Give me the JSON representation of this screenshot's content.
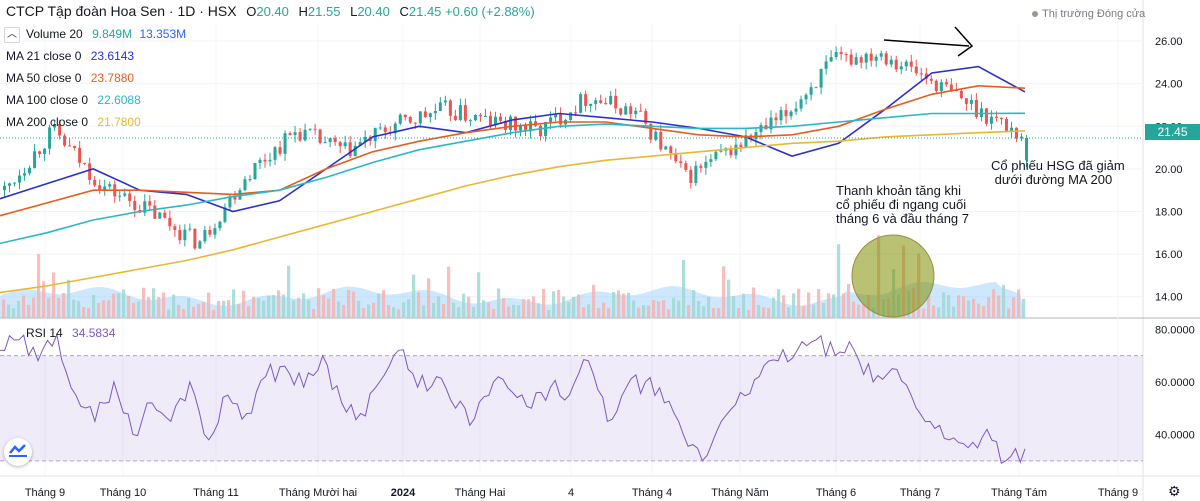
{
  "header": {
    "title": "CTCP Tập đoàn Hoa Sen · 1D · HSX",
    "open_label": "O",
    "open": "20.40",
    "high_label": "H",
    "high": "21.55",
    "low_label": "L",
    "low": "20.40",
    "close_label": "C",
    "close": "21.45",
    "change": "+0.60 (+2.88%)",
    "market_status": "Thị trường Đóng cửa",
    "collapse_icon": "chevron-up-icon"
  },
  "indicators": [
    {
      "name": "Volume 20",
      "v1": "9.849M",
      "v2": "13.353M",
      "color1": "#26a69a",
      "color2": "#2962ff"
    },
    {
      "name": "MA 21 close 0",
      "value": "23.6143",
      "color": "#2a2fcf"
    },
    {
      "name": "MA 50 close 0",
      "value": "23.7880",
      "color": "#e65d1e"
    },
    {
      "name": "MA 100 close 0",
      "value": "22.6088",
      "color": "#2ab8c4"
    },
    {
      "name": "MA 200 close 0",
      "value": "21.7800",
      "color": "#e8b830"
    }
  ],
  "rsi": {
    "name": "RSI 14",
    "value": "34.5834",
    "color": "#7e57c2"
  },
  "price_tag": "21.45",
  "annotations": {
    "volume_note": "Thanh khoản tăng khi\ncổ phiếu đi ngang cuối\ntháng 6 và đầu tháng 7",
    "ma200_note": "Cổ phiếu HSG đã giảm\n dưới đường MA 200"
  },
  "colors": {
    "up": "#26a69a",
    "down": "#ef5350",
    "ma21": "#2a2fcf",
    "ma50": "#e65d1e",
    "ma100": "#2ab8c4",
    "ma200": "#e8b830",
    "rsi": "#7e57c2"
  },
  "chart_data": [
    {
      "type": "candlestick",
      "title": "CTCP Tập đoàn Hoa Sen · 1D · HSX",
      "ylim": [
        13,
        26.8
      ],
      "y_ticks": [
        "26.00",
        "24.00",
        "22.00",
        "20.00",
        "18.00",
        "16.00",
        "14.00"
      ],
      "x_ticks": [
        "Tháng 9",
        "Tháng 10",
        "Tháng 11",
        "Tháng Mười hai",
        "2024",
        "Tháng Hai",
        "4",
        "Tháng 4",
        "Tháng Năm",
        "Tháng 6",
        "Tháng 7",
        "Tháng Tám",
        "Tháng 9"
      ],
      "last_ohlc": {
        "open": 20.4,
        "high": 21.55,
        "low": 20.4,
        "close": 21.45
      },
      "close_path": [
        [
          "Tháng 9",
          19.0
        ],
        [
          "Tháng 9",
          21.8
        ],
        [
          "Tháng 10",
          19.2
        ],
        [
          "Tháng 10",
          18.0
        ],
        [
          "Tháng 11",
          16.5
        ],
        [
          "Tháng 11",
          19.8
        ],
        [
          "Tháng Mười hai",
          21.8
        ],
        [
          "Tháng Mười hai",
          20.8
        ],
        [
          "2024",
          22.0
        ],
        [
          "Tháng Hai",
          22.8
        ],
        [
          "Tháng Hai",
          22.2
        ],
        [
          "4",
          21.8
        ],
        [
          "Tháng 4",
          23.4
        ],
        [
          "Tháng 4",
          22.6
        ],
        [
          "Tháng Năm",
          19.6
        ],
        [
          "Tháng Năm",
          21.0
        ],
        [
          "Tháng 6",
          22.4
        ],
        [
          "Tháng 6",
          25.0
        ],
        [
          "Tháng 7",
          25.5
        ],
        [
          "Tháng 7",
          24.2
        ],
        [
          "Tháng Tám",
          22.8
        ],
        [
          "Tháng Tám",
          21.45
        ]
      ],
      "series": [
        {
          "name": "MA 21 close 0",
          "last": 23.6143,
          "path": [
            18.6,
            19.3,
            20.0,
            19.0,
            18.8,
            18.0,
            18.5,
            20.0,
            21.5,
            22.0,
            21.7,
            22.3,
            22.6,
            22.4,
            22.2,
            21.9,
            21.5,
            20.6,
            21.2,
            22.8,
            24.5,
            24.8,
            23.6143
          ]
        },
        {
          "name": "MA 50 close 0",
          "last": 23.788,
          "path": [
            17.8,
            18.4,
            19.0,
            19.0,
            18.9,
            18.8,
            19.0,
            20.0,
            20.8,
            21.3,
            21.7,
            22.0,
            22.2,
            22.2,
            21.9,
            21.6,
            21.5,
            21.6,
            22.0,
            22.8,
            23.5,
            23.9,
            23.788
          ]
        },
        {
          "name": "MA 100 close 0",
          "last": 22.6088,
          "path": [
            16.5,
            17.0,
            17.6,
            18.0,
            18.3,
            18.7,
            19.0,
            19.6,
            20.3,
            20.9,
            21.3,
            21.7,
            22.0,
            22.1,
            22.0,
            21.9,
            21.9,
            22.0,
            22.2,
            22.4,
            22.6,
            22.6,
            22.6088
          ]
        },
        {
          "name": "MA 200 close 0",
          "last": 21.78,
          "path": [
            14.2,
            14.5,
            14.9,
            15.3,
            15.7,
            16.2,
            16.8,
            17.4,
            18.0,
            18.6,
            19.2,
            19.7,
            20.1,
            20.4,
            20.6,
            20.8,
            21.0,
            21.2,
            21.3,
            21.5,
            21.6,
            21.7,
            21.78
          ]
        }
      ]
    },
    {
      "type": "bar",
      "title": "Volume 20",
      "values_label": [
        "9.849M",
        "13.353M"
      ]
    },
    {
      "type": "line",
      "title": "RSI 14",
      "last": 34.5834,
      "ylim": [
        25,
        82
      ],
      "y_ticks": [
        "80.0000",
        "60.0000",
        "40.0000"
      ],
      "band": [
        30,
        70
      ],
      "values": [
        72,
        76,
        68,
        78,
        55,
        45,
        60,
        40,
        52,
        45,
        60,
        38,
        55,
        48,
        62,
        66,
        58,
        70,
        52,
        48,
        60,
        72,
        58,
        62,
        50,
        46,
        60,
        56,
        50,
        58,
        55,
        68,
        45,
        58,
        60,
        52,
        40,
        30,
        45,
        56,
        62,
        68,
        72,
        76,
        70,
        72,
        60,
        65,
        55,
        45,
        38,
        35,
        42,
        30,
        34.5834
      ]
    }
  ]
}
